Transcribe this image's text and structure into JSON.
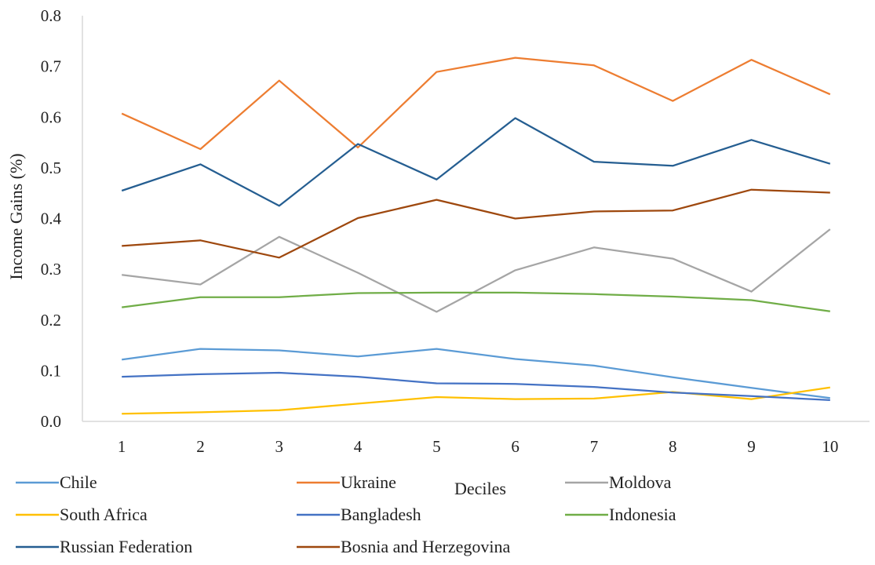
{
  "chart_data": {
    "type": "line",
    "title": "",
    "xlabel": "Deciles",
    "ylabel": "Income Gains (%)",
    "x": [
      1,
      2,
      3,
      4,
      5,
      6,
      7,
      8,
      9,
      10
    ],
    "x_tick_labels": [
      "1",
      "2",
      "3",
      "4",
      "5",
      "6",
      "7",
      "8",
      "9",
      "10"
    ],
    "ylim": [
      0,
      0.8
    ],
    "y_ticks": [
      0,
      0.1,
      0.2,
      0.3,
      0.4,
      0.5,
      0.6,
      0.7,
      0.8
    ],
    "y_tick_labels": [
      "0.0",
      "0.1",
      "0.2",
      "0.3",
      "0.4",
      "0.5",
      "0.6",
      "0.7",
      "0.8"
    ],
    "grid": false,
    "legend_position": "bottom",
    "series": [
      {
        "name": "Chile",
        "color": "#5B9BD5",
        "values": [
          0.122,
          0.143,
          0.14,
          0.128,
          0.143,
          0.123,
          0.11,
          0.087,
          0.066,
          0.046
        ]
      },
      {
        "name": "Ukraine",
        "color": "#ED7D31",
        "values": [
          0.607,
          0.537,
          0.672,
          0.54,
          0.689,
          0.717,
          0.702,
          0.632,
          0.713,
          0.645
        ]
      },
      {
        "name": "Moldova",
        "color": "#A5A5A5",
        "values": [
          0.289,
          0.27,
          0.364,
          0.293,
          0.216,
          0.298,
          0.343,
          0.321,
          0.256,
          0.379
        ]
      },
      {
        "name": "South Africa",
        "color": "#FFC000",
        "values": [
          0.015,
          0.018,
          0.022,
          0.035,
          0.048,
          0.044,
          0.045,
          0.058,
          0.044,
          0.067
        ]
      },
      {
        "name": "Bangladesh",
        "color": "#4472C4",
        "values": [
          0.088,
          0.093,
          0.096,
          0.088,
          0.075,
          0.074,
          0.068,
          0.057,
          0.05,
          0.042
        ]
      },
      {
        "name": "Indonesia",
        "color": "#70AD47",
        "values": [
          0.225,
          0.245,
          0.245,
          0.253,
          0.254,
          0.254,
          0.251,
          0.246,
          0.239,
          0.217
        ]
      },
      {
        "name": "Russian Federation",
        "color": "#255E91",
        "values": [
          0.455,
          0.507,
          0.425,
          0.547,
          0.477,
          0.598,
          0.512,
          0.504,
          0.555,
          0.508
        ]
      },
      {
        "name": "Bosnia and Herzegovina",
        "color": "#9E480E",
        "values": [
          0.346,
          0.357,
          0.323,
          0.401,
          0.437,
          0.4,
          0.414,
          0.416,
          0.457,
          0.451
        ]
      }
    ]
  }
}
